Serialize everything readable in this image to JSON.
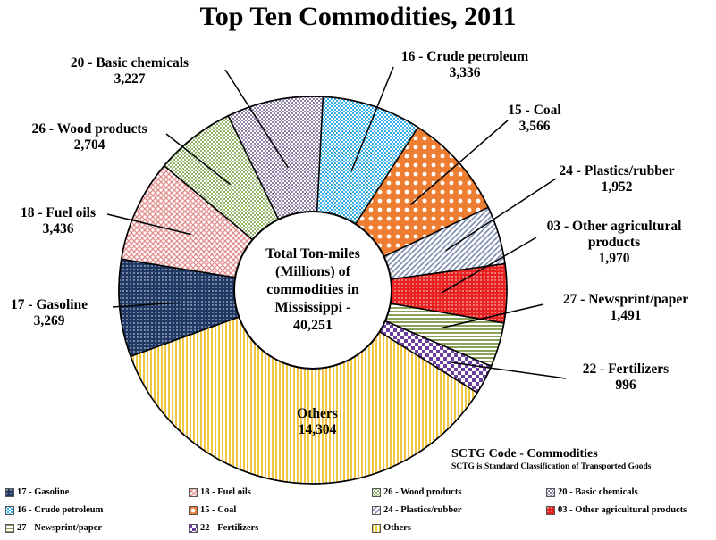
{
  "chart_data": {
    "type": "pie",
    "title": "Top Ten Commodities, 2011",
    "center_label": [
      "Total Ton-miles",
      "(Millions) of",
      "commodities in",
      "Mississippi -",
      "40,251"
    ],
    "code_heading": "SCTG Code - Commodities",
    "code_subtitle": "SCTG is Standard Classification of Transported Goods",
    "slices": [
      {
        "name": "16 - Crude petroleum",
        "value_label": "3,336",
        "value": 3336,
        "color": "#35b0e6",
        "pattern": "checker"
      },
      {
        "name": "15 - Coal",
        "value_label": "3,566",
        "value": 3566,
        "color": "#ed7d31",
        "pattern": "dots-large"
      },
      {
        "name": "24 - Plastics/rubber",
        "value_label": "1,952",
        "value": 1952,
        "color": "#7c8bb0",
        "pattern": "diag"
      },
      {
        "name": "03 - Other agricultural products",
        "value_label": "1,970",
        "value": 1970,
        "color": "#e8201f",
        "pattern": "dots"
      },
      {
        "name": "27 - Newsprint/paper",
        "value_label": "1,491",
        "value": 1491,
        "color": "#8aa35a",
        "pattern": "hlines"
      },
      {
        "name": "22 - Fertilizers",
        "value_label": "996",
        "value": 996,
        "color": "#6b3fa0",
        "pattern": "checker-large"
      },
      {
        "name": "Others",
        "value_label": "14,304",
        "value": 14304,
        "color": "#f2c744",
        "pattern": "vlines"
      },
      {
        "name": "17 - Gasoline",
        "value_label": "3,269",
        "value": 3269,
        "color": "#1f3864",
        "pattern": "dots"
      },
      {
        "name": "18 - Fuel oils",
        "value_label": "3,436",
        "value": 3436,
        "color": "#e38b8b",
        "pattern": "grid"
      },
      {
        "name": "26 - Wood products",
        "value_label": "2,704",
        "value": 2704,
        "color": "#93b56a",
        "pattern": "checker"
      },
      {
        "name": "20 - Basic chemicals",
        "value_label": "3,227",
        "value": 3227,
        "color": "#8f80a8",
        "pattern": "checker"
      }
    ],
    "legend": [
      "17 - Gasoline",
      "18 - Fuel oils",
      "26 - Wood products",
      "20 - Basic chemicals",
      "16 - Crude petroleum",
      "15 - Coal",
      "24 - Plastics/rubber",
      "03 - Other agricultural products",
      "27 - Newsprint/paper",
      "22 - Fertilizers",
      "Others"
    ]
  }
}
